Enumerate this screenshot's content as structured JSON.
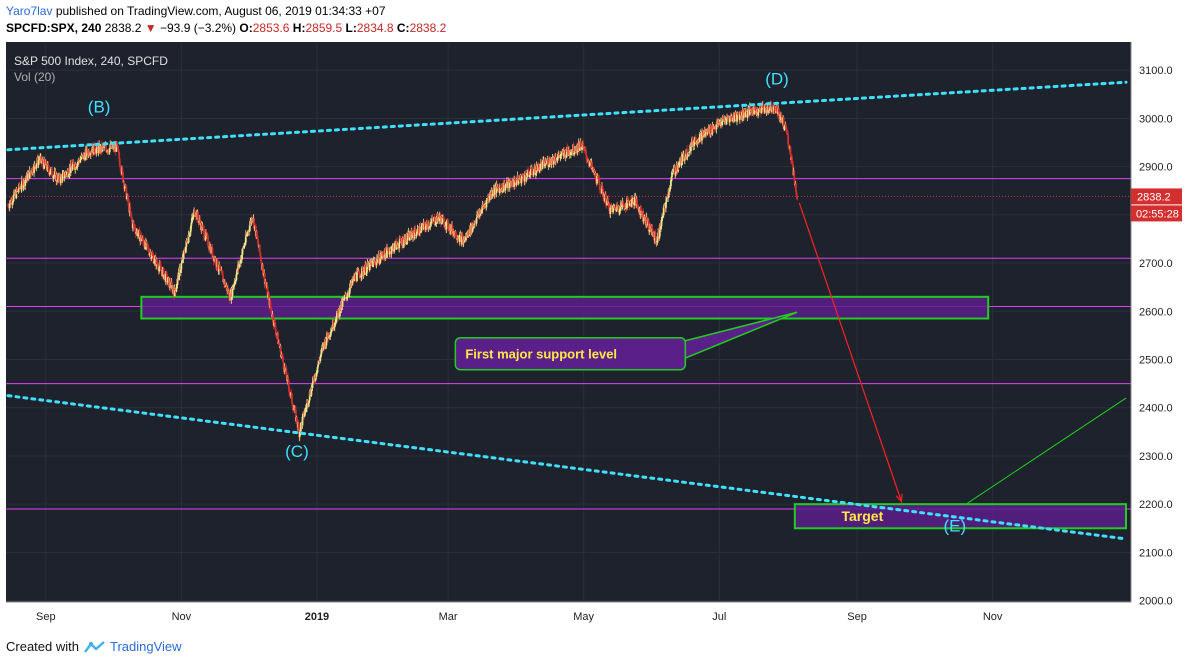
{
  "header": {
    "author": "Yaro7lav",
    "published_text": "published on TradingView.com, August 06, 2019 01:34:33 +07",
    "symbol": "SPCFD:SPX, 240",
    "last": "2838.2",
    "change": "−93.9 (−3.2%)",
    "open_label": "O:",
    "open": "2853.6",
    "high_label": "H:",
    "high": "2859.5",
    "low_label": "L:",
    "low": "2834.8",
    "close_label": "C:",
    "close": "2838.2"
  },
  "legend": {
    "title": "S&P 500 Index, 240, SPCFD",
    "volume": "Vol (20)"
  },
  "colors": {
    "background": "#1e222d",
    "grid": "#2b2f3b",
    "up": "#f0e68c",
    "down": "#d32f2f",
    "magenta": "#e040fb",
    "cyan": "#40e0ff",
    "green": "#22cc22",
    "zone_fill": "#5b1f8a",
    "price_tag": "#d32f2f",
    "red_arrow": "#ff2020"
  },
  "price_tag": {
    "price": "2838.2",
    "countdown": "02:55:28"
  },
  "footer": {
    "created_with": "Created with",
    "brand": "TradingView"
  },
  "chart_data": {
    "type": "candlestick",
    "title": "S&P 500 Index, 240, SPCFD",
    "ylim": [
      2000,
      3100
    ],
    "y_ticks": [
      "2000.0",
      "2100.0",
      "2200.0",
      "2300.0",
      "2400.0",
      "2500.0",
      "2600.0",
      "2700.0",
      "2800.0",
      "2900.0",
      "3000.0",
      "3100.0"
    ],
    "xlim": [
      "2018-08-15",
      "2019-12-31"
    ],
    "x_ticks": [
      {
        "label": "Sep",
        "date": "2018-09-01"
      },
      {
        "label": "Nov",
        "date": "2018-11-01"
      },
      {
        "label": "2019",
        "date": "2019-01-01"
      },
      {
        "label": "Mar",
        "date": "2019-03-01"
      },
      {
        "label": "May",
        "date": "2019-05-01"
      },
      {
        "label": "Jul",
        "date": "2019-07-01"
      },
      {
        "label": "Sep",
        "date": "2019-09-01"
      },
      {
        "label": "Nov",
        "date": "2019-11-01"
      }
    ],
    "price_path": [
      [
        "2018-08-15",
        2820
      ],
      [
        "2018-08-29",
        2915
      ],
      [
        "2018-09-07",
        2872
      ],
      [
        "2018-09-21",
        2935
      ],
      [
        "2018-10-03",
        2940
      ],
      [
        "2018-10-10",
        2780
      ],
      [
        "2018-10-29",
        2640
      ],
      [
        "2018-11-07",
        2810
      ],
      [
        "2018-11-23",
        2630
      ],
      [
        "2018-12-03",
        2800
      ],
      [
        "2018-12-10",
        2630
      ],
      [
        "2018-12-24",
        2350
      ],
      [
        "2019-01-04",
        2530
      ],
      [
        "2019-01-18",
        2670
      ],
      [
        "2019-02-05",
        2735
      ],
      [
        "2019-02-25",
        2795
      ],
      [
        "2019-03-08",
        2745
      ],
      [
        "2019-03-21",
        2850
      ],
      [
        "2019-04-01",
        2870
      ],
      [
        "2019-04-15",
        2910
      ],
      [
        "2019-04-30",
        2945
      ],
      [
        "2019-05-13",
        2810
      ],
      [
        "2019-05-24",
        2830
      ],
      [
        "2019-06-03",
        2745
      ],
      [
        "2019-06-10",
        2885
      ],
      [
        "2019-06-20",
        2955
      ],
      [
        "2019-07-03",
        2995
      ],
      [
        "2019-07-15",
        3015
      ],
      [
        "2019-07-26",
        3025
      ],
      [
        "2019-07-31",
        2980
      ],
      [
        "2019-08-02",
        2930
      ],
      [
        "2019-08-05",
        2838
      ]
    ],
    "horizontal_levels": [
      2875,
      2710,
      2610,
      2450,
      2190
    ],
    "trendlines": [
      {
        "style": "dotted",
        "color": "cyan",
        "from": [
          "2018-08-15",
          2935
        ],
        "to": [
          "2019-12-31",
          3075
        ]
      },
      {
        "style": "dotted",
        "color": "cyan",
        "from": [
          "2018-08-15",
          2425
        ],
        "to": [
          "2019-12-31",
          2128
        ]
      }
    ],
    "zones": [
      {
        "from": [
          "2018-10-14",
          2630
        ],
        "to": [
          "2019-10-30",
          2585
        ]
      },
      {
        "from": [
          "2019-08-04",
          2200
        ],
        "to": [
          "2019-12-31",
          2150
        ]
      }
    ],
    "annotations": [
      {
        "text": "(B)",
        "date": "2018-09-25",
        "price": 3012
      },
      {
        "text": "(C)",
        "date": "2018-12-23",
        "price": 2298
      },
      {
        "text": "(D)",
        "date": "2019-07-27",
        "price": 3070
      },
      {
        "text": "(E)",
        "date": "2019-10-15",
        "price": 2143
      },
      {
        "text": "First major support level",
        "date": "2019-04-25",
        "price": 2512
      },
      {
        "text": "Target",
        "date": "2019-08-25",
        "price": 2175
      }
    ],
    "arrows": [
      {
        "from": [
          "2019-08-06",
          2825
        ],
        "to": [
          "2019-09-21",
          2205
        ]
      },
      {
        "from": [
          "2019-10-20",
          2200
        ],
        "to": [
          "2019-12-31",
          2420
        ]
      }
    ]
  }
}
